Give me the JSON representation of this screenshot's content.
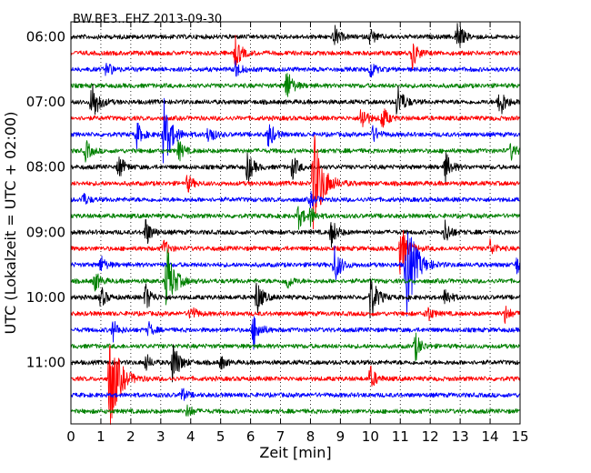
{
  "chart_data": {
    "type": "line",
    "title": "BW.BE3..EHZ 2013-09-30",
    "xlabel": "Zeit  [min]",
    "ylabel": "UTC (Lokalzeit = UTC + 02:00)",
    "xlim": [
      0,
      15
    ],
    "x_ticks": [
      "0",
      "1",
      "2",
      "3",
      "4",
      "5",
      "6",
      "7",
      "8",
      "9",
      "10",
      "11",
      "12",
      "13",
      "14",
      "15"
    ],
    "y_ticks": [
      "06:00",
      "07:00",
      "08:00",
      "09:00",
      "10:00",
      "11:00"
    ],
    "grid": "vertical dotted at each minute",
    "trace_interval_min": 15,
    "start_time": "06:00",
    "colors": [
      "#000000",
      "#ff0000",
      "#0000ff",
      "#008000"
    ],
    "traces": [
      {
        "start": "06:00",
        "color": "#000000",
        "events": [
          [
            8.8,
            0.6
          ],
          [
            10.0,
            0.5
          ],
          [
            12.9,
            0.9
          ]
        ]
      },
      {
        "start": "06:15",
        "color": "#ff0000",
        "events": [
          [
            5.5,
            0.9
          ],
          [
            11.4,
            0.8
          ]
        ]
      },
      {
        "start": "06:30",
        "color": "#0000ff",
        "events": [
          [
            1.2,
            0.5
          ],
          [
            5.5,
            0.5
          ],
          [
            10.0,
            0.5
          ]
        ]
      },
      {
        "start": "06:45",
        "color": "#008000",
        "events": [
          [
            7.2,
            1.0
          ]
        ]
      },
      {
        "start": "07:00",
        "color": "#000000",
        "events": [
          [
            0.7,
            1.3
          ],
          [
            10.9,
            1.1
          ],
          [
            14.3,
            1.0
          ]
        ]
      },
      {
        "start": "07:15",
        "color": "#ff0000",
        "events": [
          [
            9.7,
            0.8
          ],
          [
            10.4,
            0.7
          ]
        ]
      },
      {
        "start": "07:30",
        "color": "#0000ff",
        "events": [
          [
            2.2,
            0.7
          ],
          [
            3.1,
            2.0
          ],
          [
            4.6,
            0.6
          ],
          [
            6.6,
            0.8
          ],
          [
            10.1,
            0.5
          ]
        ]
      },
      {
        "start": "07:45",
        "color": "#008000",
        "events": [
          [
            0.5,
            0.6
          ],
          [
            3.6,
            0.6
          ],
          [
            14.7,
            0.5
          ]
        ]
      },
      {
        "start": "08:00",
        "color": "#000000",
        "events": [
          [
            1.6,
            0.7
          ],
          [
            5.9,
            0.9
          ],
          [
            7.4,
            0.7
          ],
          [
            12.5,
            0.9
          ]
        ]
      },
      {
        "start": "08:15",
        "color": "#ff0000",
        "events": [
          [
            8.1,
            3.0
          ],
          [
            3.9,
            0.5
          ]
        ]
      },
      {
        "start": "08:30",
        "color": "#0000ff",
        "events": [
          [
            0.4,
            0.4
          ],
          [
            8.0,
            0.4
          ]
        ]
      },
      {
        "start": "08:45",
        "color": "#008000",
        "events": [
          [
            7.6,
            0.7
          ],
          [
            8.0,
            0.5
          ]
        ]
      },
      {
        "start": "09:00",
        "color": "#000000",
        "events": [
          [
            2.5,
            0.8
          ],
          [
            8.7,
            0.8
          ],
          [
            12.5,
            0.7
          ]
        ]
      },
      {
        "start": "09:15",
        "color": "#ff0000",
        "events": [
          [
            3.1,
            0.5
          ],
          [
            11.0,
            1.5
          ],
          [
            14.0,
            0.5
          ]
        ]
      },
      {
        "start": "09:30",
        "color": "#0000ff",
        "events": [
          [
            1.0,
            0.5
          ],
          [
            8.8,
            1.1
          ],
          [
            11.2,
            3.0
          ],
          [
            14.9,
            0.5
          ]
        ]
      },
      {
        "start": "09:45",
        "color": "#008000",
        "events": [
          [
            0.8,
            0.6
          ],
          [
            3.2,
            2.0
          ],
          [
            7.2,
            0.5
          ]
        ]
      },
      {
        "start": "10:00",
        "color": "#000000",
        "events": [
          [
            1.0,
            0.6
          ],
          [
            2.5,
            0.8
          ],
          [
            6.2,
            1.0
          ],
          [
            10.0,
            1.4
          ],
          [
            12.5,
            0.6
          ]
        ]
      },
      {
        "start": "10:15",
        "color": "#ff0000",
        "events": [
          [
            4.0,
            0.5
          ],
          [
            11.9,
            0.5
          ],
          [
            14.5,
            0.5
          ]
        ]
      },
      {
        "start": "10:30",
        "color": "#0000ff",
        "events": [
          [
            1.4,
            0.6
          ],
          [
            6.1,
            1.0
          ],
          [
            2.6,
            0.4
          ]
        ]
      },
      {
        "start": "10:45",
        "color": "#008000",
        "events": [
          [
            11.5,
            0.8
          ]
        ]
      },
      {
        "start": "11:00",
        "color": "#000000",
        "events": [
          [
            2.5,
            0.5
          ],
          [
            3.4,
            1.3
          ],
          [
            5.0,
            0.4
          ]
        ]
      },
      {
        "start": "11:15",
        "color": "#ff0000",
        "events": [
          [
            1.3,
            3.0
          ],
          [
            10.0,
            0.7
          ]
        ]
      },
      {
        "start": "11:30",
        "color": "#0000ff",
        "events": [
          [
            3.7,
            0.4
          ]
        ]
      },
      {
        "start": "11:45",
        "color": "#008000",
        "events": [
          [
            3.9,
            0.4
          ]
        ]
      }
    ]
  }
}
